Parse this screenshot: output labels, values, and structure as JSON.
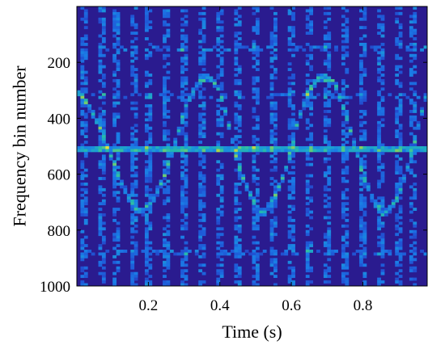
{
  "chart_data": {
    "type": "heatmap",
    "title": "",
    "xlabel": "Time (s)",
    "ylabel": "Frequency bin number",
    "xlim": [
      0.0,
      0.98
    ],
    "ylim": [
      1000,
      0
    ],
    "y_reversed": true,
    "x_ticks": [
      {
        "value": 0.2,
        "label": "0.2"
      },
      {
        "value": 0.4,
        "label": "0.4"
      },
      {
        "value": 0.6,
        "label": "0.6"
      },
      {
        "value": 0.8,
        "label": "0.8"
      }
    ],
    "y_ticks": [
      {
        "value": 200,
        "label": "200"
      },
      {
        "value": 400,
        "label": "400"
      },
      {
        "value": 600,
        "label": "600"
      },
      {
        "value": 800,
        "label": "800"
      },
      {
        "value": 1000,
        "label": "1000"
      }
    ],
    "colormap": [
      "#2a1b8f",
      "#2c35b8",
      "#1f56d6",
      "#1a7ae6",
      "#1b9bd6",
      "#22b8b0",
      "#4cc98a",
      "#a8d14a",
      "#f5e23a"
    ],
    "background_color": "#2a1b8f",
    "features": {
      "carrier_frequency_bin": 510,
      "carrier_intensity": 0.85,
      "harmonic_bands": [
        {
          "freq_bin": 150,
          "intensity": 0.35
        },
        {
          "freq_bin": 320,
          "intensity": 0.3
        },
        {
          "freq_bin": 880,
          "intensity": 0.3
        }
      ],
      "periodic_vertical_streaks_x": [
        0.02,
        0.07,
        0.11,
        0.16,
        0.2,
        0.25,
        0.3,
        0.35,
        0.4,
        0.45,
        0.5,
        0.55,
        0.6,
        0.65,
        0.7,
        0.75,
        0.8,
        0.85,
        0.9,
        0.94
      ],
      "micro_doppler_curves": [
        {
          "points": [
            [
              0.0,
              300
            ],
            [
              0.03,
              350
            ],
            [
              0.06,
              420
            ],
            [
              0.09,
              520
            ],
            [
              0.12,
              620
            ],
            [
              0.15,
              700
            ],
            [
              0.18,
              735
            ],
            [
              0.21,
              700
            ],
            [
              0.24,
              620
            ],
            [
              0.27,
              510
            ]
          ],
          "intensity": 0.65
        },
        {
          "points": [
            [
              0.27,
              510
            ],
            [
              0.29,
              420
            ],
            [
              0.31,
              340
            ],
            [
              0.34,
              270
            ],
            [
              0.37,
              250
            ],
            [
              0.4,
              300
            ],
            [
              0.42,
              400
            ],
            [
              0.44,
              510
            ]
          ],
          "intensity": 0.6
        },
        {
          "points": [
            [
              0.44,
              510
            ],
            [
              0.46,
              600
            ],
            [
              0.49,
              690
            ],
            [
              0.52,
              745
            ],
            [
              0.55,
              690
            ],
            [
              0.58,
              600
            ],
            [
              0.6,
              510
            ]
          ],
          "intensity": 0.65
        },
        {
          "points": [
            [
              0.6,
              510
            ],
            [
              0.62,
              400
            ],
            [
              0.65,
              300
            ],
            [
              0.68,
              250
            ],
            [
              0.72,
              270
            ],
            [
              0.75,
              380
            ],
            [
              0.78,
              510
            ]
          ],
          "intensity": 0.7
        },
        {
          "points": [
            [
              0.78,
              510
            ],
            [
              0.8,
              600
            ],
            [
              0.83,
              700
            ],
            [
              0.86,
              745
            ],
            [
              0.89,
              700
            ],
            [
              0.92,
              600
            ],
            [
              0.94,
              510
            ]
          ],
          "intensity": 0.6
        },
        {
          "points": [
            [
              0.94,
              510
            ],
            [
              0.96,
              400
            ],
            [
              0.98,
              300
            ]
          ],
          "intensity": 0.55
        }
      ]
    }
  }
}
